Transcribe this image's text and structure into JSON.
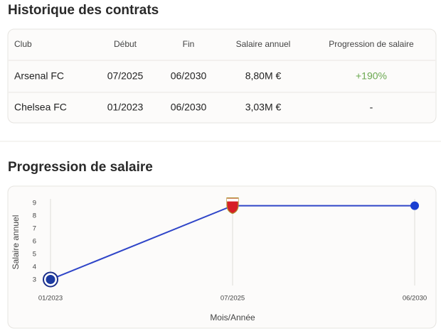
{
  "contracts": {
    "title": "Historique des contrats",
    "headers": [
      "Club",
      "Début",
      "Fin",
      "Salaire annuel",
      "Progression de salaire"
    ],
    "rows": [
      [
        "Arsenal FC",
        "07/2025",
        "06/2030",
        "8,80M €",
        "+190%"
      ],
      [
        "Chelsea FC",
        "01/2023",
        "06/2030",
        "3,03M €",
        "-"
      ]
    ]
  },
  "chart_data": {
    "type": "line",
    "title": "Progression de salaire",
    "x_label": "Mois/Année",
    "y_label": "Salaire annuel",
    "categories": [
      "01/2023",
      "07/2025",
      "06/2030"
    ],
    "values": [
      3.03,
      8.8,
      8.8
    ],
    "color": "#2f45c8",
    "ylim": [
      3,
      9
    ],
    "yticks": [
      3,
      4,
      5,
      6,
      7,
      8,
      9
    ],
    "grid": true
  }
}
